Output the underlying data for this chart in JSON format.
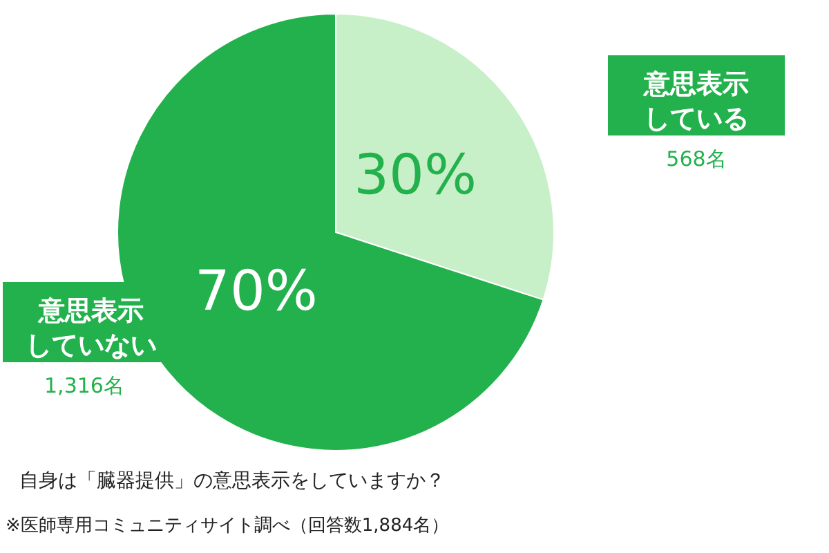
{
  "chart_data": {
    "type": "pie",
    "categories": [
      "意思表示している",
      "意思表示していない"
    ],
    "values": [
      30,
      70
    ],
    "colors": [
      "#c8f0c8",
      "#22b14c"
    ],
    "value_labels": [
      "30%",
      "70%"
    ],
    "annotations": [
      "568名",
      "1,316名",
      "自身は「臓器提供」の意思表示をしていますか？",
      "※医師専用コミュニティサイト調べ（回答数1,884名）"
    ]
  }
}
